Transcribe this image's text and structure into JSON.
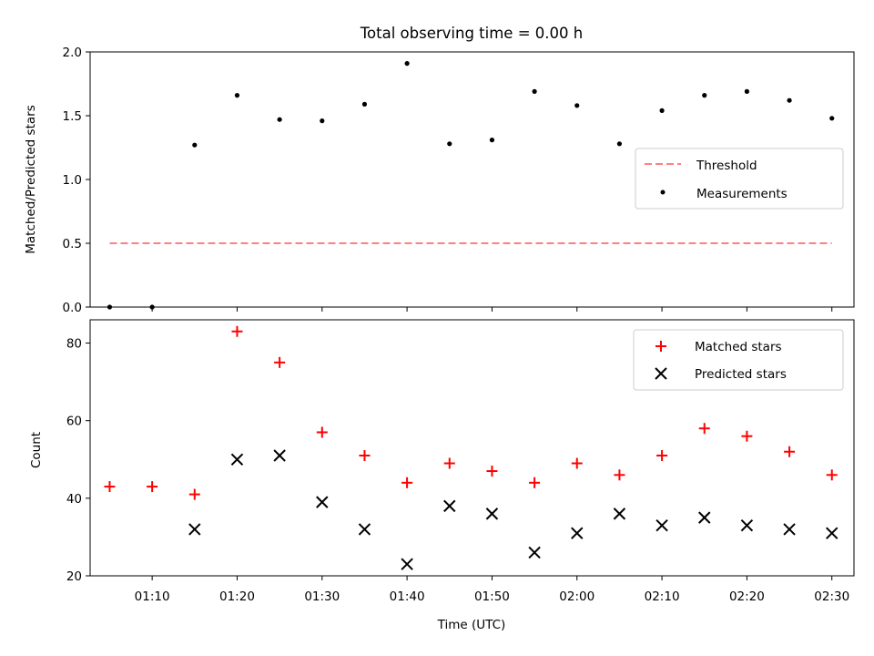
{
  "chart_data": [
    {
      "type": "scatter",
      "title": "Total observing time = 0.00 h",
      "xlabel": "",
      "ylabel": "Matched/Predicted stars",
      "ylim": [
        0,
        2.0
      ],
      "yticks": [
        "0.0",
        "0.5",
        "1.0",
        "1.5",
        "2.0"
      ],
      "x": [
        "01:05",
        "01:10",
        "01:15",
        "01:20",
        "01:25",
        "01:30",
        "01:35",
        "01:40",
        "01:45",
        "01:50",
        "01:55",
        "02:00",
        "02:05",
        "02:10",
        "02:15",
        "02:20",
        "02:25",
        "02:30"
      ],
      "series": [
        {
          "name": "Threshold",
          "style": "dashed-line",
          "color": "#ff8080",
          "values": [
            0.5,
            0.5
          ]
        },
        {
          "name": "Measurements",
          "style": "dot",
          "color": "#000000",
          "values": [
            0.0,
            0.0,
            1.27,
            1.66,
            1.47,
            1.46,
            1.59,
            1.91,
            1.28,
            1.31,
            1.69,
            1.58,
            1.28,
            1.54,
            1.66,
            1.69,
            1.62,
            1.48
          ]
        }
      ],
      "legend": "center-right",
      "grid": false
    },
    {
      "type": "scatter",
      "title": "",
      "xlabel": "Time (UTC)",
      "ylabel": "Count",
      "ylim": [
        20,
        86
      ],
      "yticks": [
        "20",
        "40",
        "60",
        "80"
      ],
      "xticks": [
        "01:10",
        "01:20",
        "01:30",
        "01:40",
        "01:50",
        "02:00",
        "02:10",
        "02:20",
        "02:30"
      ],
      "x": [
        "01:05",
        "01:10",
        "01:15",
        "01:20",
        "01:25",
        "01:30",
        "01:35",
        "01:40",
        "01:45",
        "01:50",
        "01:55",
        "02:00",
        "02:05",
        "02:10",
        "02:15",
        "02:20",
        "02:25",
        "02:30"
      ],
      "series": [
        {
          "name": "Matched stars",
          "marker": "plus",
          "color": "#ff0000",
          "values": [
            43,
            43,
            41,
            83,
            75,
            57,
            51,
            44,
            49,
            47,
            44,
            49,
            46,
            51,
            58,
            56,
            52,
            46
          ]
        },
        {
          "name": "Predicted stars",
          "marker": "x",
          "color": "#000000",
          "values": [
            null,
            null,
            32,
            50,
            51,
            39,
            32,
            23,
            38,
            36,
            26,
            31,
            36,
            33,
            35,
            33,
            32,
            31
          ]
        }
      ],
      "legend": "top-right",
      "grid": false
    }
  ]
}
